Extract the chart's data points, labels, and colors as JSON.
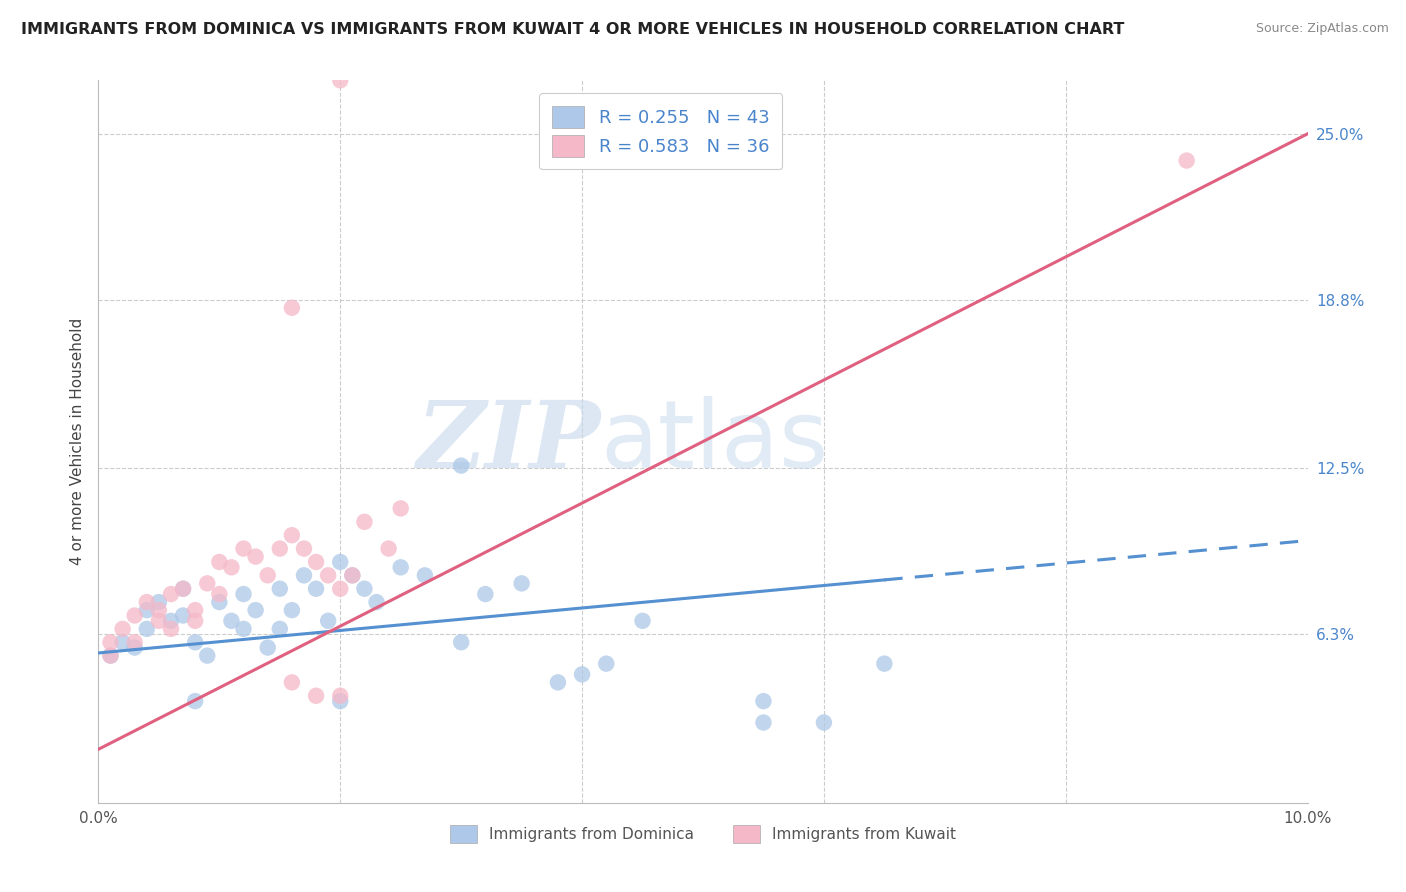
{
  "title": "IMMIGRANTS FROM DOMINICA VS IMMIGRANTS FROM KUWAIT 4 OR MORE VEHICLES IN HOUSEHOLD CORRELATION CHART",
  "source": "Source: ZipAtlas.com",
  "ylabel": "4 or more Vehicles in Household",
  "watermark_zip": "ZIP",
  "watermark_atlas": "atlas",
  "xlim": [
    0.0,
    0.1
  ],
  "ylim": [
    0.0,
    0.27
  ],
  "yticks_right": [
    0.063,
    0.125,
    0.188,
    0.25
  ],
  "ytickslabels_right": [
    "6.3%",
    "12.5%",
    "18.8%",
    "25.0%"
  ],
  "legend_r1": "R = 0.255",
  "legend_n1": "N = 43",
  "legend_r2": "R = 0.583",
  "legend_n2": "N = 36",
  "color_dominica": "#adc8e8",
  "color_kuwait": "#f5b8c8",
  "line_color_dominica": "#5590d0",
  "line_color_kuwait": "#e06080",
  "dominica_x": [
    0.001,
    0.002,
    0.003,
    0.004,
    0.004,
    0.005,
    0.006,
    0.007,
    0.007,
    0.008,
    0.009,
    0.01,
    0.011,
    0.012,
    0.012,
    0.013,
    0.014,
    0.015,
    0.015,
    0.016,
    0.017,
    0.018,
    0.019,
    0.02,
    0.021,
    0.022,
    0.023,
    0.025,
    0.027,
    0.03,
    0.032,
    0.035,
    0.038,
    0.04,
    0.042,
    0.045,
    0.055,
    0.06,
    0.065,
    0.03,
    0.02,
    0.008,
    0.055
  ],
  "dominica_y": [
    0.055,
    0.06,
    0.058,
    0.072,
    0.065,
    0.075,
    0.068,
    0.08,
    0.07,
    0.06,
    0.055,
    0.075,
    0.068,
    0.065,
    0.078,
    0.072,
    0.058,
    0.065,
    0.08,
    0.072,
    0.085,
    0.08,
    0.068,
    0.09,
    0.085,
    0.08,
    0.075,
    0.088,
    0.085,
    0.06,
    0.078,
    0.082,
    0.045,
    0.048,
    0.052,
    0.068,
    0.03,
    0.03,
    0.052,
    0.126,
    0.038,
    0.038,
    0.038
  ],
  "kuwait_x": [
    0.001,
    0.001,
    0.002,
    0.003,
    0.003,
    0.004,
    0.005,
    0.005,
    0.006,
    0.006,
    0.007,
    0.008,
    0.008,
    0.009,
    0.01,
    0.01,
    0.011,
    0.012,
    0.013,
    0.014,
    0.015,
    0.016,
    0.017,
    0.018,
    0.019,
    0.02,
    0.021,
    0.022,
    0.024,
    0.025,
    0.02,
    0.018,
    0.016,
    0.016,
    0.09,
    0.02
  ],
  "kuwait_y": [
    0.06,
    0.055,
    0.065,
    0.07,
    0.06,
    0.075,
    0.068,
    0.072,
    0.078,
    0.065,
    0.08,
    0.072,
    0.068,
    0.082,
    0.078,
    0.09,
    0.088,
    0.095,
    0.092,
    0.085,
    0.095,
    0.1,
    0.095,
    0.09,
    0.085,
    0.08,
    0.085,
    0.105,
    0.095,
    0.11,
    0.04,
    0.04,
    0.045,
    0.185,
    0.24,
    0.27
  ],
  "trend_dominica_x0": 0.0,
  "trend_dominica_y0": 0.056,
  "trend_dominica_x1": 0.1,
  "trend_dominica_y1": 0.098,
  "trend_dominica_solid_end": 0.065,
  "trend_kuwait_x0": 0.0,
  "trend_kuwait_y0": 0.02,
  "trend_kuwait_x1": 0.1,
  "trend_kuwait_y1": 0.25,
  "legend_color1": "#adc8e8",
  "legend_color2": "#f5b8c8",
  "legend_text_color": "#4a85cc",
  "bg_color": "#ffffff",
  "grid_color": "#cccccc"
}
